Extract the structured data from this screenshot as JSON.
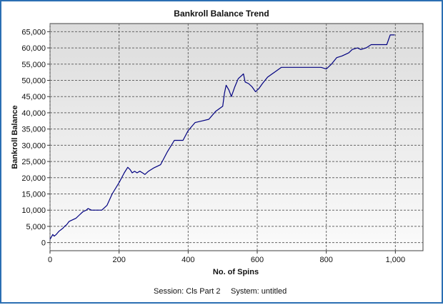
{
  "chart_data": {
    "type": "line",
    "title": "Bankroll Balance Trend",
    "xlabel": "No. of Spins",
    "ylabel": "Bankroll Balance",
    "xlim": [
      0,
      1080
    ],
    "ylim": [
      -2500,
      67500
    ],
    "x_ticks": [
      0,
      200,
      400,
      600,
      800,
      1000
    ],
    "x_tick_labels": [
      "0",
      "200",
      "400",
      "600",
      "800",
      "1,000"
    ],
    "y_ticks": [
      0,
      5000,
      10000,
      15000,
      20000,
      25000,
      30000,
      35000,
      40000,
      45000,
      50000,
      55000,
      60000,
      65000
    ],
    "y_tick_labels": [
      "0",
      "5,000",
      "10,000",
      "15,000",
      "20,000",
      "25,000",
      "30,000",
      "35,000",
      "40,000",
      "45,000",
      "50,000",
      "55,000",
      "60,000",
      "65,000"
    ],
    "grid": true,
    "line_color": "#000080",
    "series": [
      {
        "x": [
          0,
          8,
          12,
          18,
          22,
          26,
          32,
          38,
          42,
          48,
          55,
          65,
          75,
          85,
          95,
          105,
          110,
          120,
          150,
          165,
          180,
          200,
          215,
          225,
          232,
          238,
          245,
          252,
          260,
          268,
          275,
          285,
          300,
          310,
          320,
          340,
          360,
          385,
          400,
          420,
          440,
          460,
          480,
          500,
          505,
          510,
          518,
          525,
          535,
          545,
          555,
          560,
          565,
          575,
          585,
          595,
          605,
          615,
          630,
          650,
          670,
          700,
          750,
          785,
          800,
          815,
          830,
          845,
          855,
          865,
          875,
          890,
          900,
          915,
          930,
          945,
          960,
          975,
          985,
          998
        ],
        "y": [
          1000,
          2500,
          2000,
          2500,
          3000,
          3500,
          4000,
          4500,
          5000,
          5500,
          6500,
          7000,
          7500,
          8500,
          9500,
          10000,
          10500,
          10000,
          10000,
          11500,
          15000,
          18500,
          21500,
          23200,
          22500,
          21500,
          22000,
          21500,
          22000,
          21500,
          21000,
          22000,
          23000,
          23500,
          24000,
          28000,
          31500,
          31500,
          34500,
          37000,
          37500,
          38000,
          40500,
          42000,
          46000,
          48500,
          47000,
          45000,
          48000,
          50500,
          51500,
          52000,
          49500,
          49000,
          48000,
          46500,
          47500,
          49000,
          51000,
          52500,
          54000,
          54000,
          54000,
          54000,
          53500,
          55000,
          57000,
          57500,
          58000,
          58500,
          59500,
          60000,
          59500,
          60000,
          61000,
          61000,
          61000,
          61000,
          64000,
          64000
        ]
      }
    ]
  },
  "footer": {
    "session": "Session:  Cls Part 2",
    "system": "System:  untitled"
  }
}
